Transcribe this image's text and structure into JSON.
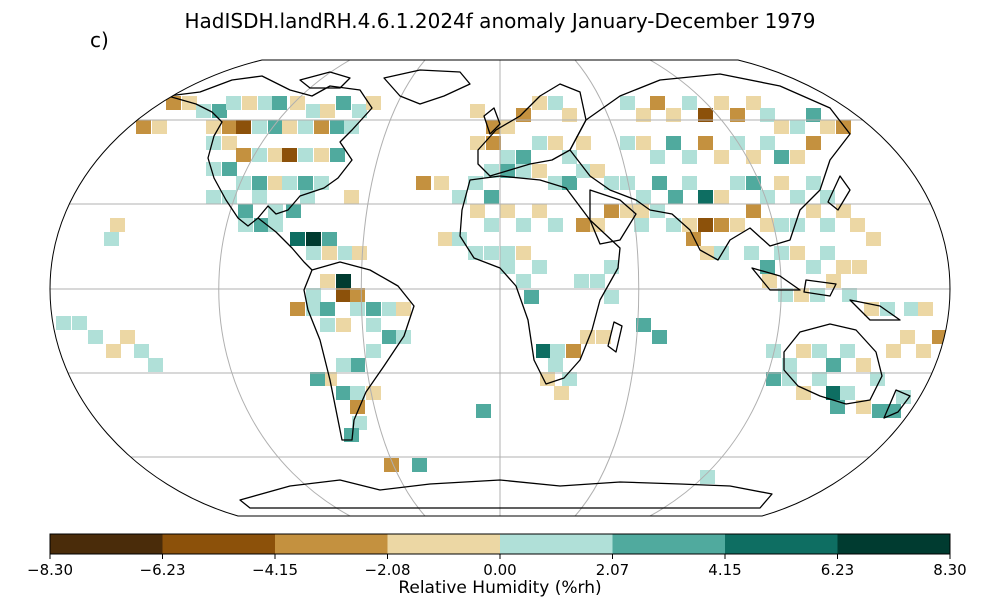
{
  "title": "HadISDH.landRH.4.6.1.2024f anomaly January-December 1979",
  "panel_label": "c)",
  "colorbar": {
    "label": "Relative Humidity (%rh)",
    "ticks": [
      "−8.30",
      "−6.23",
      "−4.15",
      "−2.08",
      "0.00",
      "2.07",
      "4.15",
      "6.23",
      "8.30"
    ],
    "colors": [
      "#4a2c0a",
      "#8c510a",
      "#c4913f",
      "#ecd7a4",
      "#b0e0d8",
      "#50aa9e",
      "#0e6e62",
      "#003b30"
    ]
  },
  "map": {
    "projection": "Robinson",
    "graticule": true,
    "coastlines": true
  }
}
